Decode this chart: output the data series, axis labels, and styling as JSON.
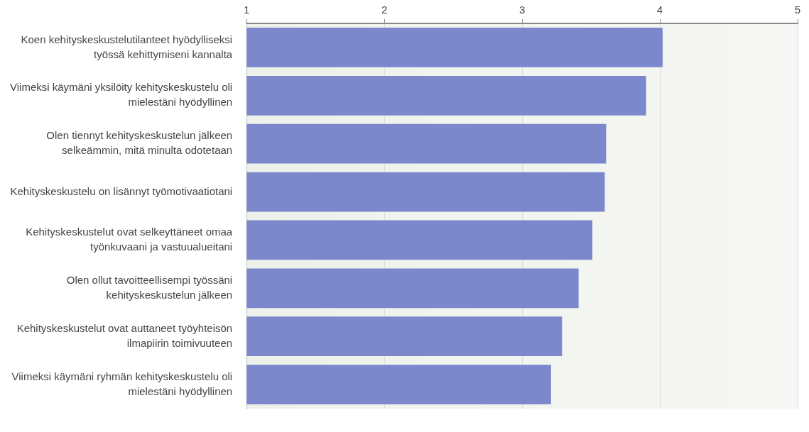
{
  "chart_data": {
    "type": "bar",
    "orientation": "horizontal",
    "categories": [
      "Koen kehityskeskustelutilanteet hyödylliseksi työssä kehittymiseni kannalta",
      "Viimeksi käymäni yksilöity kehityskeskustelu oli mielestäni hyödyllinen",
      "Olen tiennyt kehityskeskustelun jälkeen selkeämmin, mitä minulta odotetaan",
      "Kehityskeskustelu on lisännyt työmotivaatiotani",
      "Kehityskeskustelut ovat selkeyttäneet omaa työnkuvaani ja vastuualueitani",
      "Olen ollut tavoitteellisempi työssäni kehityskeskustelun jälkeen",
      "Kehityskeskustelut ovat auttaneet työyhteisön ilmapiirin toimivuuteen",
      "Viimeksi käymäni ryhmän kehityskeskustelu oli mielestäni hyödyllinen"
    ],
    "values": [
      4.02,
      3.9,
      3.61,
      3.6,
      3.51,
      3.41,
      3.29,
      3.21
    ],
    "color": "#7b88cc",
    "xlim": [
      1,
      5
    ],
    "xticks": [
      1,
      2,
      3,
      4,
      5
    ],
    "grid": "x"
  }
}
